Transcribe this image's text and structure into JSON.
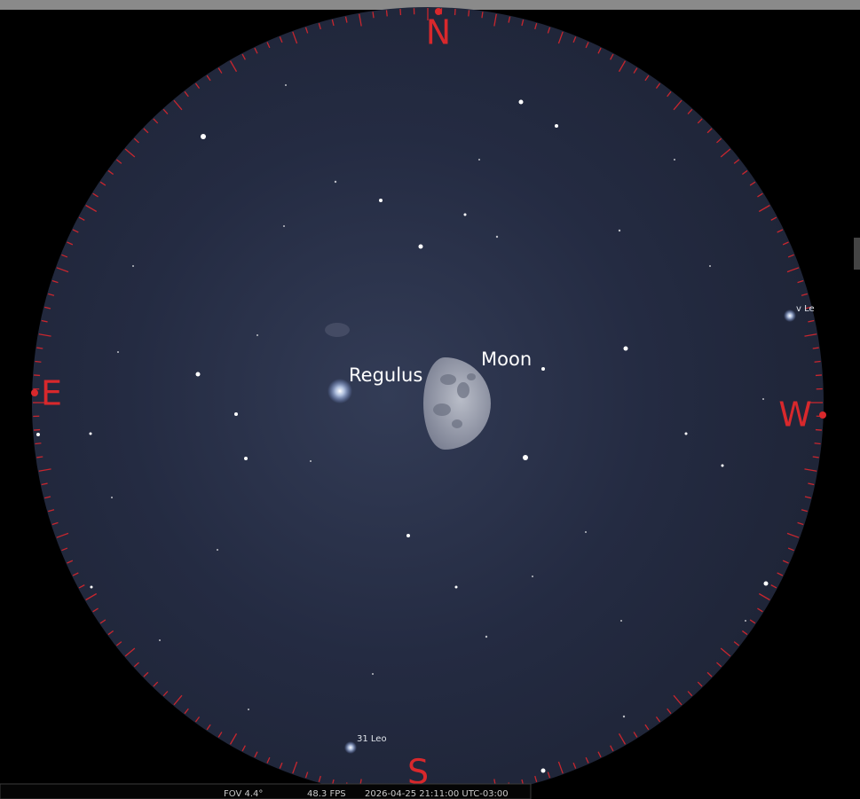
{
  "compass": {
    "north": "N",
    "east": "E",
    "south": "S",
    "west": "W"
  },
  "objects": [
    {
      "label": "Regulus"
    },
    {
      "label": "Moon"
    },
    {
      "label": "31 Leo"
    },
    {
      "label": "v Le"
    }
  ],
  "status_bar": {
    "fov": "FOV 4.4°",
    "fps": "48.3 FPS",
    "datetime": "2026-04-25 21:11:00 UTC-03:00"
  }
}
